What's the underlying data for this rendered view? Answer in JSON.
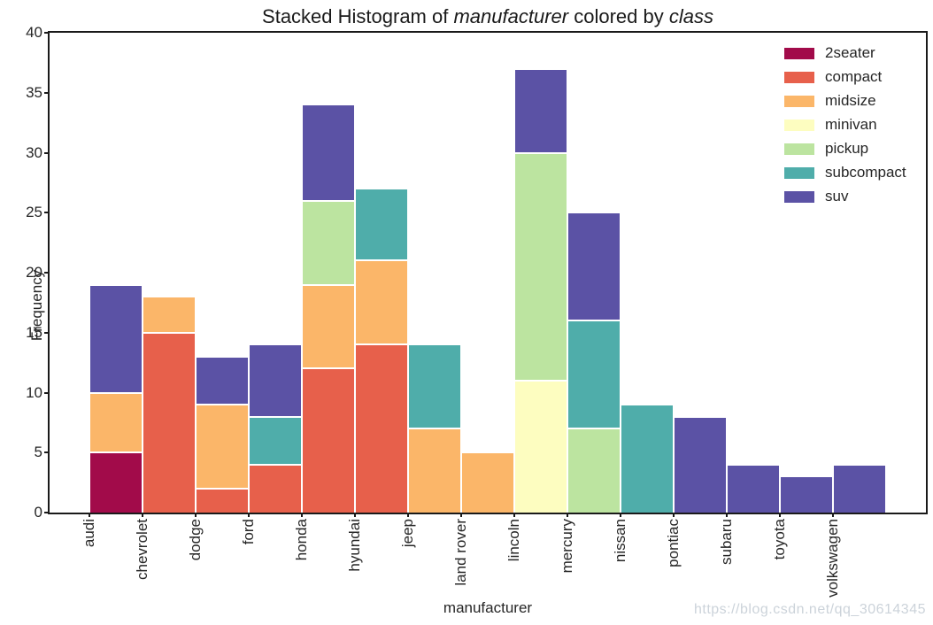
{
  "title": {
    "part1": "Stacked Histogram of ",
    "italic1": "manufacturer",
    "part2": " colored by ",
    "italic2": "class"
  },
  "watermark": "https://blog.csdn.net/qq_30614345",
  "chart_data": {
    "type": "bar",
    "subtype": "stacked-histogram",
    "title": "Stacked Histogram of manufacturer colored by class",
    "xlabel": "manufacturer",
    "ylabel": "Frequency",
    "ylim": [
      0,
      40
    ],
    "yticks": [
      0,
      5,
      10,
      15,
      20,
      25,
      30,
      35,
      40
    ],
    "grid": false,
    "legend_position": "upper-right",
    "categories": [
      "audi",
      "chevrolet",
      "dodge",
      "ford",
      "honda",
      "hyundai",
      "jeep",
      "land rover",
      "lincoln",
      "mercury",
      "nissan",
      "pontiac",
      "subaru",
      "toyota",
      "volkswagen"
    ],
    "series": [
      {
        "name": "2seater",
        "color": "#a20b4a",
        "values": [
          5,
          0,
          0,
          0,
          0,
          0,
          0,
          0,
          0,
          0,
          0,
          0,
          0,
          0,
          0
        ]
      },
      {
        "name": "compact",
        "color": "#e7604b",
        "values": [
          0,
          15,
          2,
          4,
          12,
          14,
          0,
          0,
          0,
          0,
          0,
          0,
          0,
          0,
          0
        ]
      },
      {
        "name": "midsize",
        "color": "#fbb669",
        "values": [
          5,
          3,
          7,
          0,
          7,
          7,
          7,
          5,
          0,
          0,
          0,
          0,
          0,
          0,
          0
        ]
      },
      {
        "name": "minivan",
        "color": "#fdfdc0",
        "values": [
          0,
          0,
          0,
          0,
          0,
          0,
          0,
          0,
          11,
          0,
          0,
          0,
          0,
          0,
          0
        ]
      },
      {
        "name": "pickup",
        "color": "#bce4a0",
        "values": [
          0,
          0,
          0,
          0,
          7,
          0,
          0,
          0,
          19,
          7,
          0,
          0,
          0,
          0,
          0
        ]
      },
      {
        "name": "subcompact",
        "color": "#4fadaa",
        "values": [
          0,
          0,
          0,
          4,
          0,
          6,
          7,
          0,
          0,
          9,
          9,
          0,
          0,
          0,
          0
        ]
      },
      {
        "name": "suv",
        "color": "#5b52a5",
        "values": [
          9,
          0,
          4,
          6,
          8,
          0,
          0,
          0,
          7,
          9,
          0,
          8,
          4,
          3,
          4
        ]
      }
    ],
    "totals": {
      "audi": 19,
      "chevrolet": 18,
      "dodge": 13,
      "ford": 14,
      "honda": 34,
      "hyundai": 27,
      "jeep": 14,
      "land rover": 5,
      "lincoln": 37,
      "mercury": 25,
      "nissan": 9,
      "pontiac": 8,
      "subaru": 4,
      "toyota": 3,
      "volkswagen": 4
    }
  }
}
